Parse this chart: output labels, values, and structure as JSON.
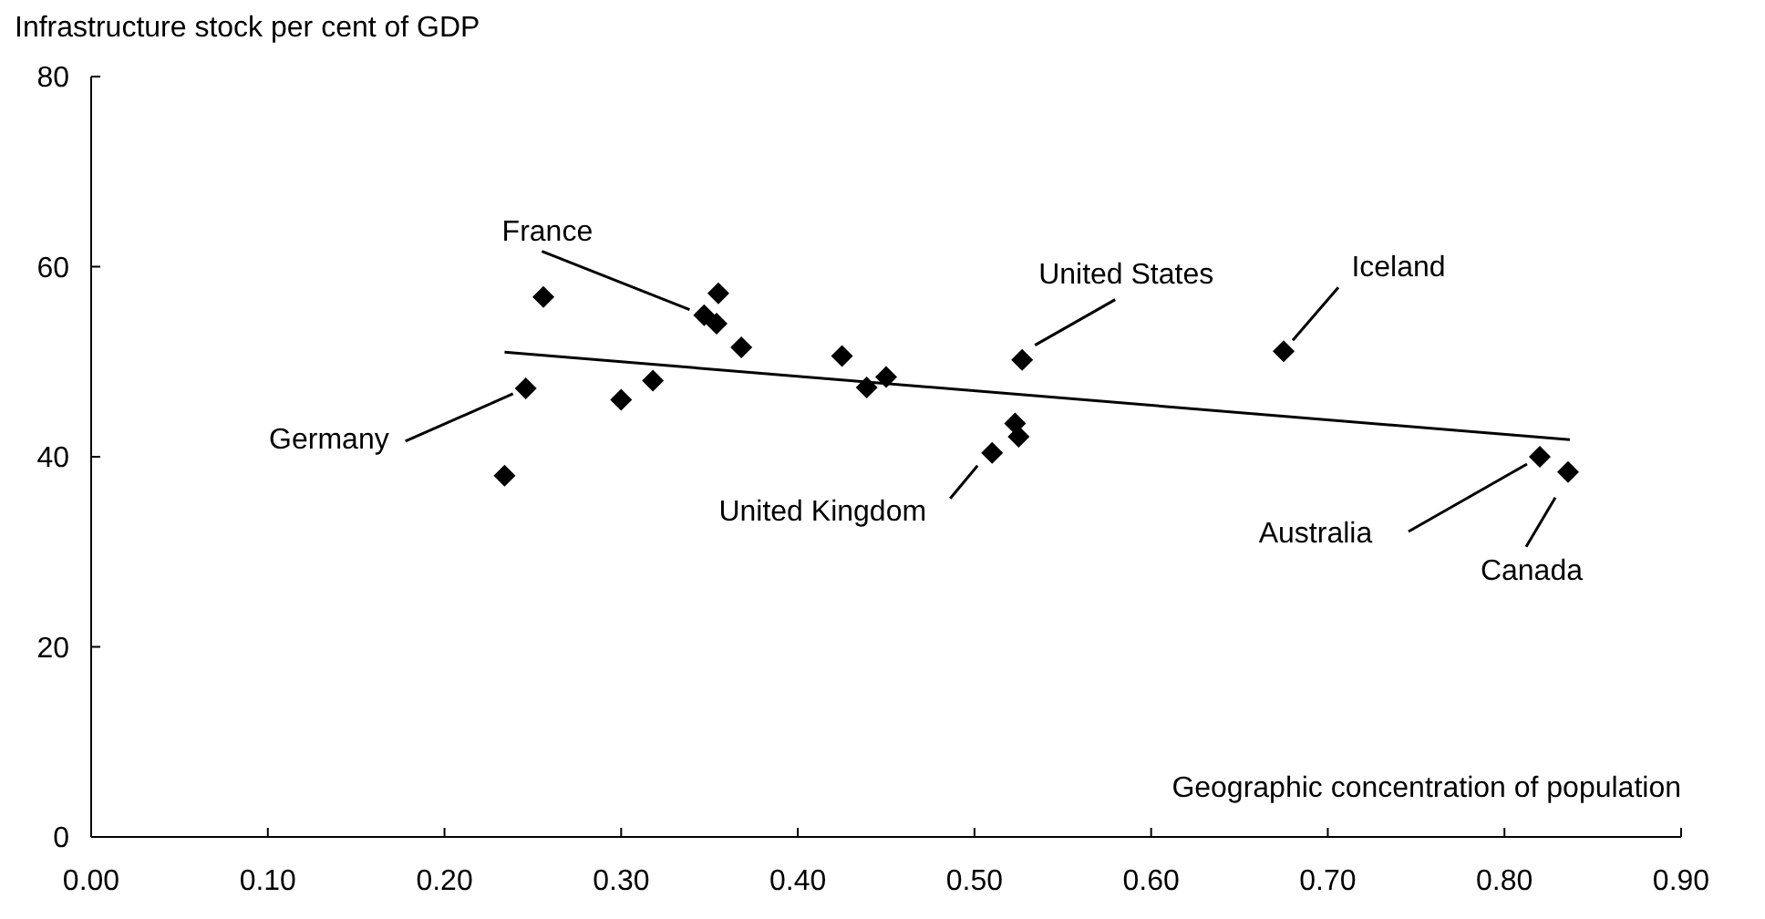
{
  "chart_data": {
    "type": "scatter",
    "ylabel": "Infrastructure stock per cent of GDP",
    "xlabel": "Geographic concentration of population",
    "xlim": [
      0,
      0.9
    ],
    "xticks": [
      {
        "value": 0,
        "label": "0.00"
      },
      {
        "value": 0.1,
        "label": "0.10"
      },
      {
        "value": 0.2,
        "label": "0.20"
      },
      {
        "value": 0.3,
        "label": "0.30"
      },
      {
        "value": 0.4,
        "label": "0.40"
      },
      {
        "value": 0.5,
        "label": "0.50"
      },
      {
        "value": 0.6,
        "label": "0.60"
      },
      {
        "value": 0.7,
        "label": "0.70"
      },
      {
        "value": 0.8,
        "label": "0.80"
      },
      {
        "value": 0.9,
        "label": "0.90"
      }
    ],
    "ylim": [
      0,
      80
    ],
    "yticks": [
      0,
      20,
      40,
      60,
      80
    ],
    "marker": "diamond",
    "series": [
      {
        "color": "#000000",
        "x": [
          0.256,
          0.355,
          0.347,
          0.354,
          0.368,
          0.425,
          0.45,
          0.439,
          0.318,
          0.3,
          0.246,
          0.234,
          0.82,
          0.836,
          0.675,
          0.527,
          0.51,
          0.523,
          0.525
        ],
        "values": [
          56.8,
          57.2,
          54.9,
          54.0,
          51.5,
          50.6,
          48.4,
          47.3,
          48.0,
          46.0,
          47.2,
          38.0,
          40.0,
          38.4,
          51.1,
          50.2,
          40.4,
          43.5,
          42.1
        ]
      },
      {
        "type": "line",
        "color": "#000000",
        "x": [
          0.234,
          0.837
        ],
        "values": [
          51.0,
          41.8
        ],
        "marker": "none",
        "line_style": "solid"
      }
    ],
    "annotations": [
      {
        "text": "France",
        "x": 0.347,
        "y": 54.9
      },
      {
        "text": "Germany",
        "x": 0.246,
        "y": 47.2
      },
      {
        "text": "United States",
        "x": 0.527,
        "y": 50.2
      },
      {
        "text": "Iceland",
        "x": 0.675,
        "y": 51.1
      },
      {
        "text": "United Kingdom",
        "x": 0.51,
        "y": 40.4
      },
      {
        "text": "Australia",
        "x": 0.82,
        "y": 40.0
      },
      {
        "text": "Canada",
        "x": 0.836,
        "y": 38.4
      }
    ]
  }
}
